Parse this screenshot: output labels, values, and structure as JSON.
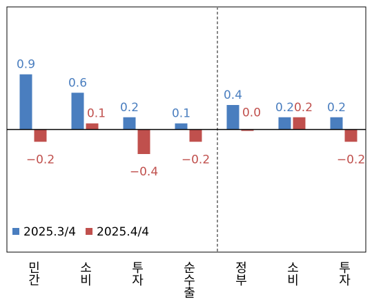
{
  "chart_data": {
    "type": "bar",
    "categories": [
      "민간",
      "소비",
      "투자",
      "순수출",
      "정부",
      "소비",
      "투자"
    ],
    "series": [
      {
        "name": "2025.3/4",
        "color": "#4a7ebf",
        "values": [
          0.9,
          0.6,
          0.2,
          0.1,
          0.4,
          0.2,
          0.2
        ]
      },
      {
        "name": "2025.4/4",
        "color": "#c0504d",
        "values": [
          -0.2,
          0.1,
          -0.4,
          -0.2,
          0.0,
          0.2,
          -0.2
        ],
        "value_labels": [
          "−0.2",
          "0.1",
          "−0.4",
          "−0.2",
          "0.0",
          "0.2",
          "−0.2"
        ]
      }
    ],
    "ylim": [
      -2,
      2
    ],
    "legend": "lower left"
  }
}
